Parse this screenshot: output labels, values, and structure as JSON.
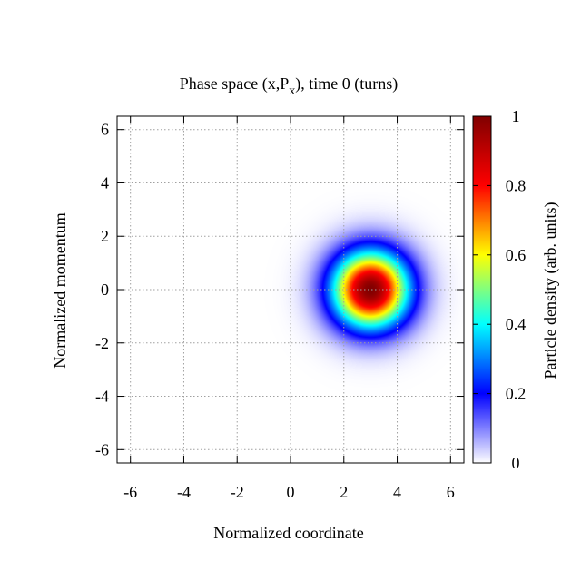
{
  "chart_data": {
    "type": "heatmap",
    "title": {
      "text": "Phase space (x,P",
      "subscript": "x",
      "suffix": "), time 0 (turns)"
    },
    "xlabel": "Normalized coordinate",
    "ylabel": "Normalized momentum",
    "colorbar_label": "Particle density (arb. units)",
    "xlim": [
      -6.5,
      6.5
    ],
    "ylim": [
      -6.5,
      6.5
    ],
    "xticks": [
      -6,
      -4,
      -2,
      0,
      2,
      4,
      6
    ],
    "yticks": [
      -6,
      -4,
      -2,
      0,
      2,
      4,
      6
    ],
    "colorbar_range": [
      0,
      1
    ],
    "colorbar_ticks": [
      0,
      0.2,
      0.4,
      0.6,
      0.8,
      1
    ],
    "colorbar_tick_labels": [
      "0",
      "0.2",
      "0.4",
      "0.6",
      "0.8",
      "1"
    ],
    "grid": true,
    "distribution": {
      "shape": "gaussian",
      "center_x": 3,
      "center_y": 0,
      "sigma": 1.0,
      "peak": 1
    },
    "colors": {
      "min": "#ffffff",
      "scale": [
        "#ffffff",
        "#0000ff",
        "#00ffff",
        "#ffff00",
        "#ff0000",
        "#800000"
      ],
      "grid": "#a0a0a0"
    }
  }
}
